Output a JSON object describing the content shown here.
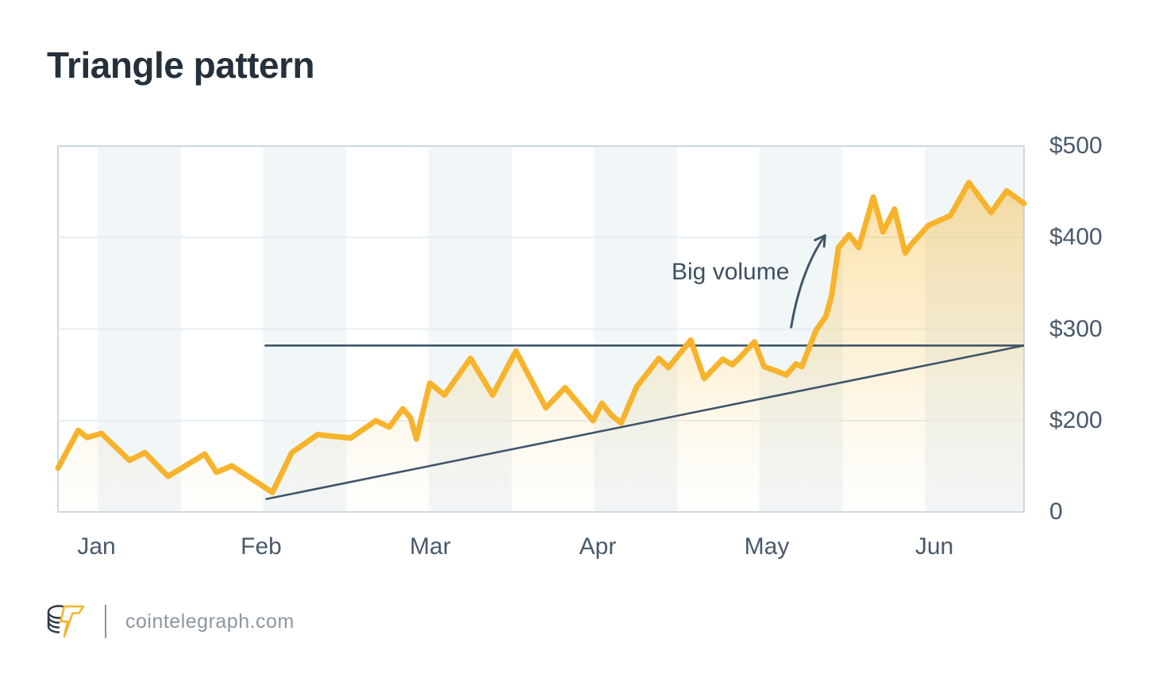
{
  "page": {
    "title": "Triangle pattern"
  },
  "footer": {
    "site": "cointelegraph.com",
    "logo_icon": "cointelegraph-coin-lightning-logo"
  },
  "chart_data": {
    "type": "area",
    "title": "Triangle pattern",
    "xlabel": "",
    "ylabel": "price (USD)",
    "ylim": [
      0,
      500
    ],
    "legend": "none",
    "grid": "3 horizontal gridlines ($400,$300,$200) + alternating vertical month bands",
    "x_unit": "time Jan-Jun; point x stored as fraction 0-1 of plot width (Jan tick=0.04, Jun tick=0.907)",
    "x_ticks": [
      "Jan",
      "Feb",
      "Mar",
      "Apr",
      "May",
      "Jun"
    ],
    "y_ticks": [
      {
        "label": "$500",
        "value": 500
      },
      {
        "label": "$400",
        "value": 400
      },
      {
        "label": "$300",
        "value": 300
      },
      {
        "label": "$200",
        "value": 200
      },
      {
        "label": "0",
        "value": 0
      }
    ],
    "series": [
      {
        "name": "price",
        "color": "#F7B32B",
        "points": [
          [
            0.0,
            96
          ],
          [
            0.021,
            179
          ],
          [
            0.03,
            163
          ],
          [
            0.045,
            172
          ],
          [
            0.074,
            113
          ],
          [
            0.09,
            130
          ],
          [
            0.114,
            78
          ],
          [
            0.152,
            127
          ],
          [
            0.164,
            87
          ],
          [
            0.18,
            101
          ],
          [
            0.222,
            43
          ],
          [
            0.242,
            130
          ],
          [
            0.269,
            170
          ],
          [
            0.279,
            167
          ],
          [
            0.303,
            162
          ],
          [
            0.329,
            200
          ],
          [
            0.343,
            186
          ],
          [
            0.357,
            213
          ],
          [
            0.365,
            203
          ],
          [
            0.371,
            160
          ],
          [
            0.385,
            241
          ],
          [
            0.4,
            228
          ],
          [
            0.427,
            268
          ],
          [
            0.45,
            228
          ],
          [
            0.474,
            276
          ],
          [
            0.505,
            214
          ],
          [
            0.525,
            236
          ],
          [
            0.554,
            200
          ],
          [
            0.563,
            219
          ],
          [
            0.573,
            206
          ],
          [
            0.583,
            195
          ],
          [
            0.599,
            237
          ],
          [
            0.622,
            268
          ],
          [
            0.632,
            258
          ],
          [
            0.655,
            288
          ],
          [
            0.669,
            246
          ],
          [
            0.688,
            267
          ],
          [
            0.698,
            261
          ],
          [
            0.704,
            267
          ],
          [
            0.721,
            286
          ],
          [
            0.731,
            259
          ],
          [
            0.744,
            254
          ],
          [
            0.754,
            250
          ],
          [
            0.764,
            262
          ],
          [
            0.77,
            259
          ],
          [
            0.777,
            278
          ],
          [
            0.785,
            299
          ],
          [
            0.795,
            314
          ],
          [
            0.801,
            337
          ],
          [
            0.808,
            389
          ],
          [
            0.819,
            403
          ],
          [
            0.829,
            389
          ],
          [
            0.844,
            444
          ],
          [
            0.854,
            406
          ],
          [
            0.866,
            431
          ],
          [
            0.877,
            383
          ],
          [
            0.883,
            392
          ],
          [
            0.901,
            413
          ],
          [
            0.924,
            424
          ],
          [
            0.943,
            460
          ],
          [
            0.966,
            427
          ],
          [
            0.982,
            451
          ],
          [
            1.0,
            437
          ]
        ]
      }
    ],
    "trendlines": [
      {
        "name": "resistance",
        "from": [
          0.214,
          282
        ],
        "to": [
          1.0,
          282
        ],
        "color": "#3F5669"
      },
      {
        "name": "support",
        "from": [
          0.215,
          28
        ],
        "to": [
          1.0,
          282
        ],
        "color": "#3F5669"
      }
    ],
    "annotations": [
      {
        "text": "Big volume",
        "arrow_from": [
          0.759,
          302
        ],
        "arrow_to": [
          0.794,
          402
        ]
      }
    ]
  }
}
